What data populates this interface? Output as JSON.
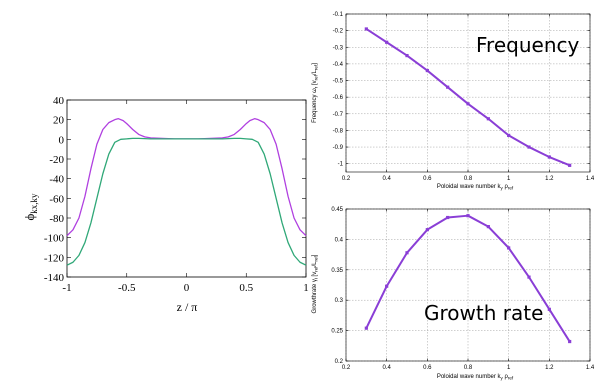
{
  "chart_data": [
    {
      "type": "line",
      "ylabel": "ϕ",
      "ylabel_sub": "kx,ky",
      "xlabel": "z / π",
      "xlim": [
        -1,
        1
      ],
      "ylim": [
        -140,
        40
      ],
      "xticks": [
        "-1",
        "-0.5",
        "0",
        "0.5",
        "1"
      ],
      "yticks": [
        "40",
        "20",
        "0",
        "-20",
        "-40",
        "-60",
        "-80",
        "-100",
        "-120",
        "-140"
      ],
      "grid": false,
      "series": [
        {
          "color": "#b040e0",
          "x": [
            -1.0,
            -0.95,
            -0.9,
            -0.85,
            -0.8,
            -0.75,
            -0.7,
            -0.65,
            -0.6,
            -0.57,
            -0.53,
            -0.5,
            -0.45,
            -0.4,
            -0.35,
            -0.3,
            -0.2,
            -0.1,
            0.0,
            0.1,
            0.2,
            0.3,
            0.35,
            0.4,
            0.45,
            0.5,
            0.53,
            0.57,
            0.6,
            0.65,
            0.7,
            0.75,
            0.8,
            0.85,
            0.9,
            0.95,
            1.0
          ],
          "y": [
            -98,
            -92,
            -80,
            -58,
            -30,
            -5,
            10,
            17,
            20,
            21,
            19,
            16,
            10,
            5,
            2.5,
            1.5,
            1,
            0.5,
            0.5,
            0.5,
            1,
            1.5,
            2.5,
            5,
            10,
            16,
            19,
            21,
            20,
            17,
            10,
            -5,
            -30,
            -58,
            -80,
            -92,
            -98
          ]
        },
        {
          "color": "#30a878",
          "x": [
            -1.0,
            -0.95,
            -0.9,
            -0.85,
            -0.8,
            -0.75,
            -0.7,
            -0.65,
            -0.6,
            -0.55,
            -0.5,
            -0.45,
            -0.4,
            -0.3,
            -0.2,
            -0.1,
            0.0,
            0.1,
            0.2,
            0.3,
            0.4,
            0.45,
            0.5,
            0.55,
            0.6,
            0.65,
            0.7,
            0.75,
            0.8,
            0.85,
            0.9,
            0.95,
            1.0
          ],
          "y": [
            -128,
            -125,
            -118,
            -105,
            -85,
            -60,
            -35,
            -15,
            -3,
            0,
            0.5,
            1,
            1,
            0.5,
            0.5,
            0.5,
            0.5,
            0.5,
            0.5,
            0.5,
            1,
            1,
            0.5,
            0,
            -3,
            -15,
            -35,
            -60,
            -85,
            -105,
            -118,
            -125,
            -128
          ]
        }
      ]
    },
    {
      "type": "line",
      "annotation": "Frequency",
      "ylabel": "Frequency ω",
      "ylabel_sub": "r",
      "ylabel_units": "[v",
      "ylabel_units_sub1": "ref",
      "ylabel_units_mid": "/L",
      "ylabel_units_sub2": "ref",
      "ylabel_units_end": "]",
      "xlabel": "Poloidal wave number k",
      "xlabel_sub1": "y",
      "xlabel_rho": "ρ",
      "xlabel_sub2": "ref",
      "xlim": [
        0.2,
        1.4
      ],
      "ylim": [
        -1.05,
        -0.1
      ],
      "xticks": [
        "0.2",
        "0.4",
        "0.6",
        "0.8",
        "1",
        "1.2",
        "1.4"
      ],
      "yticks": [
        "-0.1",
        "-0.2",
        "-0.3",
        "-0.4",
        "-0.5",
        "-0.6",
        "-0.7",
        "-0.8",
        "-0.9",
        "-1"
      ],
      "grid": true,
      "series": [
        {
          "color": "#8a3ed6",
          "x": [
            0.3,
            0.4,
            0.5,
            0.6,
            0.7,
            0.8,
            0.9,
            1.0,
            1.1,
            1.2,
            1.3
          ],
          "y": [
            -0.19,
            -0.27,
            -0.35,
            -0.44,
            -0.54,
            -0.64,
            -0.73,
            -0.83,
            -0.9,
            -0.96,
            -1.01
          ]
        }
      ]
    },
    {
      "type": "line",
      "annotation": "Growth rate",
      "ylabel": "Growthrate γ",
      "ylabel_sub": "i",
      "ylabel_units": "[v",
      "ylabel_units_sub1": "ref",
      "ylabel_units_mid": "/L",
      "ylabel_units_sub2": "ref",
      "ylabel_units_end": "]",
      "xlabel": "Poloidal wave number k",
      "xlabel_sub1": "y",
      "xlabel_rho": "ρ",
      "xlabel_sub2": "ref",
      "xlim": [
        0.2,
        1.4
      ],
      "ylim": [
        0.2,
        0.45
      ],
      "xticks": [
        "0.2",
        "0.4",
        "0.6",
        "0.8",
        "1",
        "1.2",
        "1.4"
      ],
      "yticks": [
        "0.45",
        "0.4",
        "0.35",
        "0.3",
        "0.25",
        "0.2"
      ],
      "grid": true,
      "series": [
        {
          "color": "#8a3ed6",
          "x": [
            0.3,
            0.4,
            0.5,
            0.6,
            0.7,
            0.8,
            0.9,
            1.0,
            1.1,
            1.2,
            1.3
          ],
          "y": [
            0.254,
            0.323,
            0.378,
            0.416,
            0.436,
            0.439,
            0.421,
            0.386,
            0.338,
            0.285,
            0.232
          ]
        }
      ]
    }
  ]
}
